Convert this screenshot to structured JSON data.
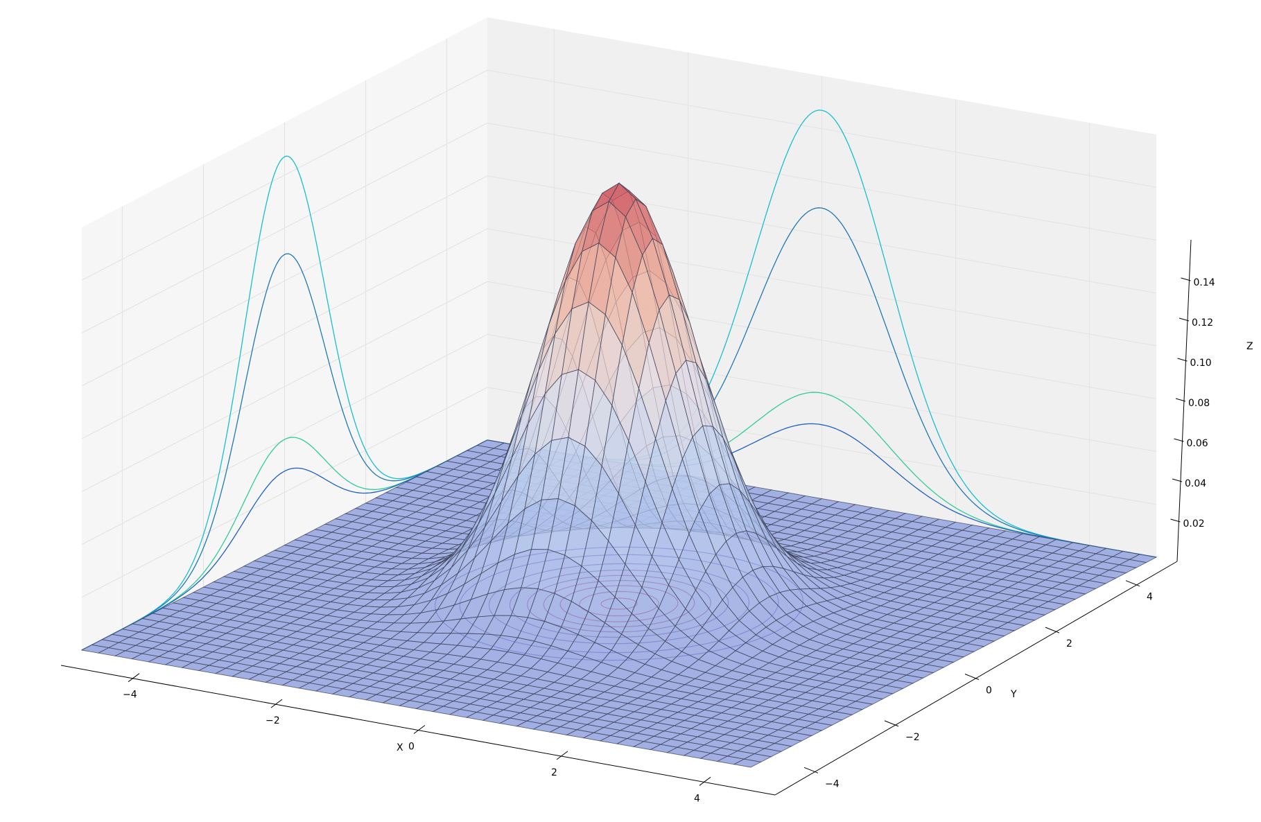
{
  "chart_data": {
    "type": "surface3d",
    "function": "bivariate normal density, mean (0,0), sigma_x = 1, sigma_y = 1",
    "xlabel": "X",
    "ylabel": "Y",
    "zlabel": "Z",
    "xlim": [
      -5,
      5
    ],
    "ylim": [
      -5,
      5
    ],
    "zlim": [
      0,
      0.16
    ],
    "x_ticks": [
      -4,
      -2,
      0,
      2,
      4
    ],
    "y_ticks": [
      -4,
      -2,
      0,
      2,
      4
    ],
    "z_ticks": [
      0.02,
      0.04,
      0.06,
      0.08,
      0.1,
      0.12,
      0.14
    ],
    "x_tick_labels": [
      "−4",
      "−2",
      "0",
      "2",
      "4"
    ],
    "y_tick_labels": [
      "−4",
      "−2",
      "0",
      "2",
      "4"
    ],
    "z_tick_labels": [
      "0.02",
      "0.04",
      "0.06",
      "0.08",
      "0.10",
      "0.12",
      "0.14"
    ],
    "peak_z": 0.159,
    "grid": true,
    "surface_colormap": "coolwarm",
    "wall_projections": [
      {
        "wall": "back-left (z vs y)",
        "color": "#17becf",
        "peak": 0.147
      },
      {
        "wall": "back-left (z vs y)",
        "color": "#1f77b4",
        "peak": 0.11
      },
      {
        "wall": "back-left (z vs y)",
        "color": "#2ecc9a",
        "peak": 0.04
      },
      {
        "wall": "back-left (z vs y)",
        "color": "#1f5fbf",
        "peak": 0.028
      },
      {
        "wall": "back-right (z vs x)",
        "color": "#17becf",
        "peak": 0.147
      },
      {
        "wall": "back-right (z vs x)",
        "color": "#1f77b4",
        "peak": 0.11
      },
      {
        "wall": "back-right (z vs x)",
        "color": "#2ecc9a",
        "peak": 0.04
      },
      {
        "wall": "back-right (z vs x)",
        "color": "#1f5fbf",
        "peak": 0.028
      }
    ],
    "floor_contours": [
      0.01,
      0.02,
      0.04,
      0.06,
      0.08,
      0.1,
      0.12,
      0.14,
      0.155
    ]
  }
}
